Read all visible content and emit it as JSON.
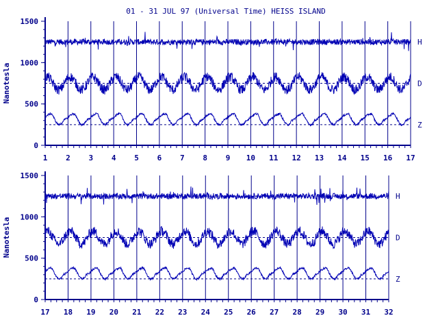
{
  "title": "01 - 31 JUL 97 (Universal Time) HEISS ISLAND",
  "colors": {
    "ink": "#00008b",
    "line": "#0000b4",
    "background": "#ffffff"
  },
  "chart_data": [
    {
      "type": "line",
      "ylabel": "Nanotesla",
      "ylim": [
        0,
        1500
      ],
      "yticks": [
        0,
        500,
        1000,
        1500
      ],
      "xlim": [
        1,
        17
      ],
      "xticks": [
        1,
        2,
        3,
        4,
        5,
        6,
        7,
        8,
        9,
        10,
        11,
        12,
        13,
        14,
        15,
        16,
        17
      ],
      "grid": "vertical day lines",
      "series": [
        {
          "name": "H",
          "baseline": 1250
        },
        {
          "name": "D",
          "baseline": 750
        },
        {
          "name": "Z",
          "baseline": 250
        }
      ]
    },
    {
      "type": "line",
      "ylabel": "Nanotesla",
      "ylim": [
        0,
        1500
      ],
      "yticks": [
        0,
        500,
        1000,
        1500
      ],
      "xlim": [
        17,
        32
      ],
      "xticks": [
        17,
        18,
        19,
        20,
        21,
        22,
        23,
        24,
        25,
        26,
        27,
        28,
        29,
        30,
        31,
        32
      ],
      "grid": "vertical day lines",
      "series": [
        {
          "name": "H",
          "baseline": 1250
        },
        {
          "name": "D",
          "baseline": 750
        },
        {
          "name": "Z",
          "baseline": 250
        }
      ]
    }
  ]
}
